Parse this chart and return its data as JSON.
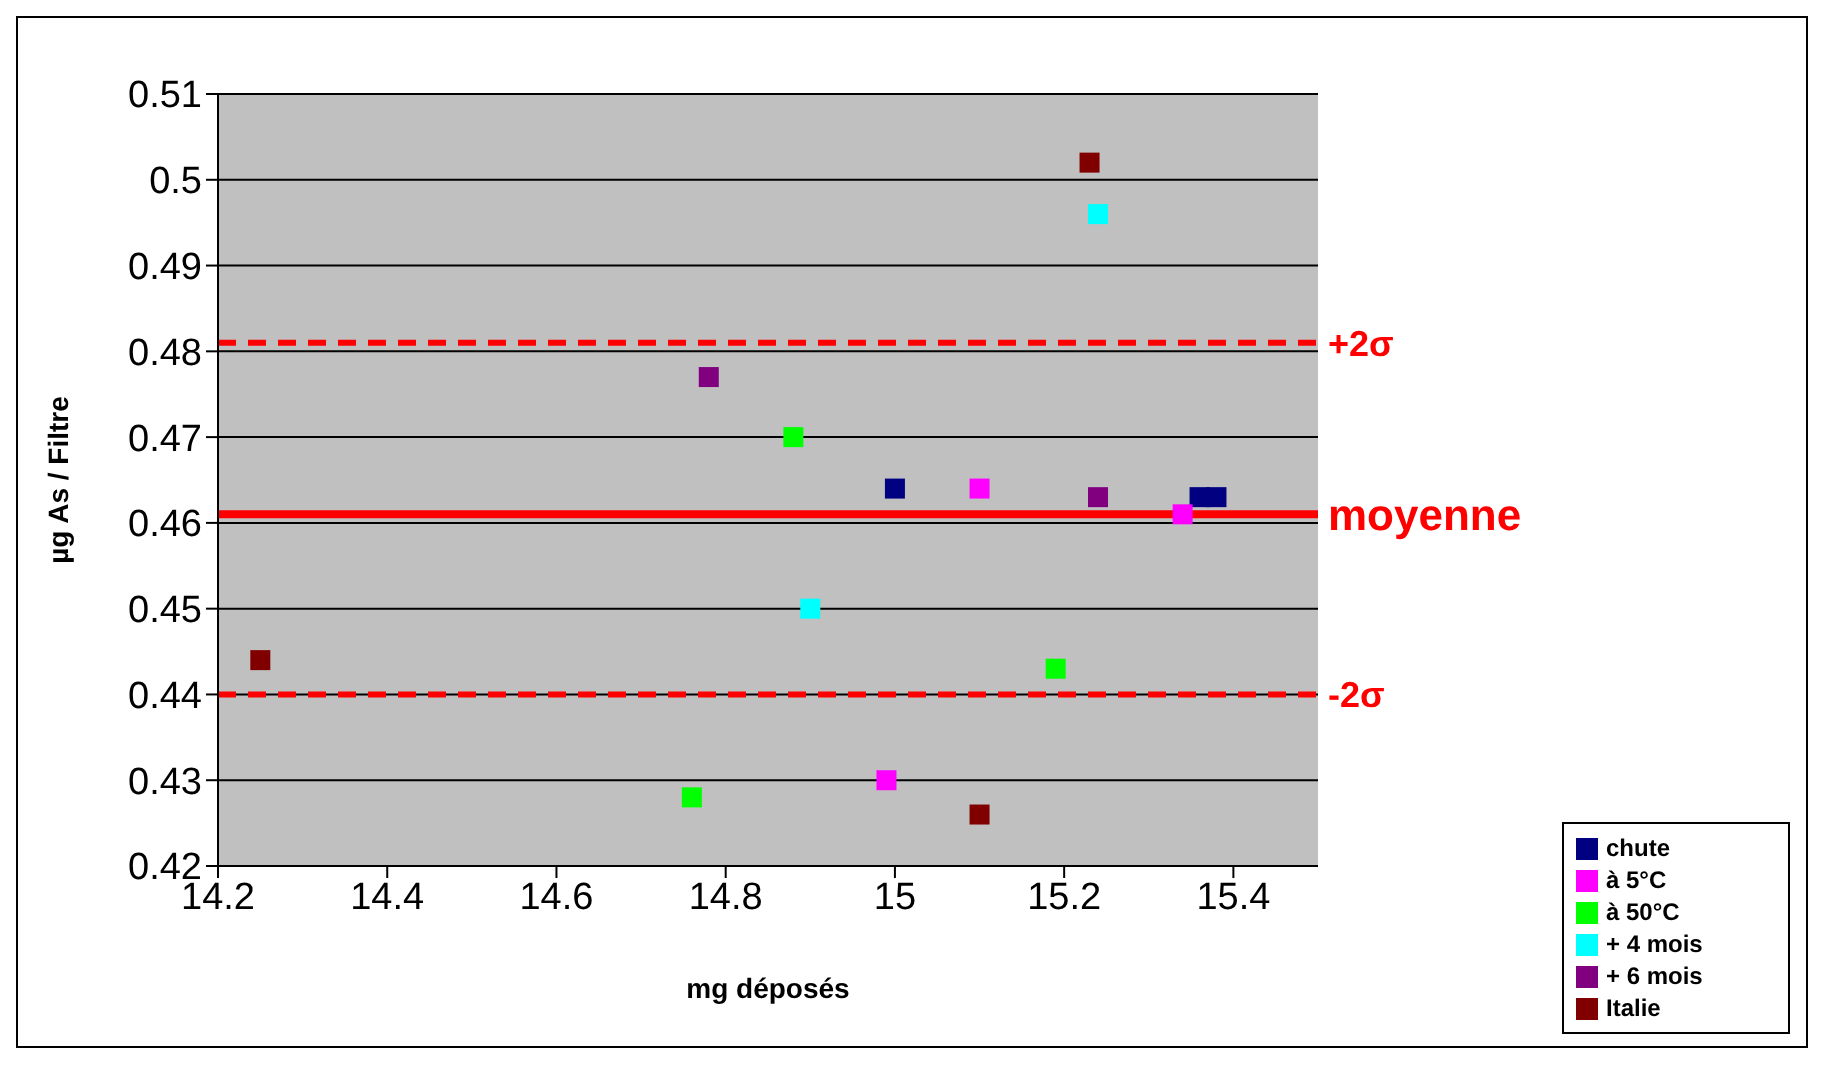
{
  "chart_data": {
    "type": "scatter",
    "xlabel": "mg déposés",
    "ylabel": "µg As / Filtre",
    "xlim": [
      14.2,
      15.5
    ],
    "xticks": [
      14.2,
      14.4,
      14.6,
      14.8,
      15,
      15.2,
      15.4
    ],
    "ylim": [
      0.42,
      0.51
    ],
    "yticks": [
      0.42,
      0.43,
      0.44,
      0.45,
      0.46,
      0.47,
      0.48,
      0.49,
      0.5,
      0.51
    ],
    "grid": "y",
    "legend": "bottom right",
    "marker": "square",
    "series": [
      {
        "name": "chute",
        "color": "#000080",
        "x": [
          15.0,
          15.36,
          15.38
        ],
        "values": [
          0.464,
          0.463,
          0.463
        ]
      },
      {
        "name": "à 5°C",
        "color": "#ff00ff",
        "x": [
          15.1,
          14.99,
          15.34
        ],
        "values": [
          0.464,
          0.43,
          0.461
        ]
      },
      {
        "name": "à 50°C",
        "color": "#00ff00",
        "x": [
          14.76,
          14.88,
          15.19
        ],
        "values": [
          0.428,
          0.47,
          0.443
        ]
      },
      {
        "name": "+ 4 mois",
        "color": "#00ffff",
        "x": [
          14.9,
          15.24
        ],
        "values": [
          0.45,
          0.496
        ]
      },
      {
        "name": "+ 6 mois",
        "color": "#800080",
        "x": [
          14.78,
          15.24
        ],
        "values": [
          0.477,
          0.463
        ]
      },
      {
        "name": "Italie",
        "color": "#800000",
        "x": [
          14.25,
          15.1,
          15.23
        ],
        "values": [
          0.444,
          0.426,
          0.502
        ]
      }
    ],
    "ref_lines": [
      {
        "axis": "y",
        "value": 0.481,
        "label": "+2σ",
        "color": "#ff0000",
        "line_style": "dashed"
      },
      {
        "axis": "y",
        "value": 0.461,
        "label": "moyenne",
        "color": "#ff0000",
        "line_style": "solid"
      },
      {
        "axis": "y",
        "value": 0.44,
        "label": "-2σ",
        "color": "#ff0000",
        "line_style": "dashed"
      }
    ]
  }
}
